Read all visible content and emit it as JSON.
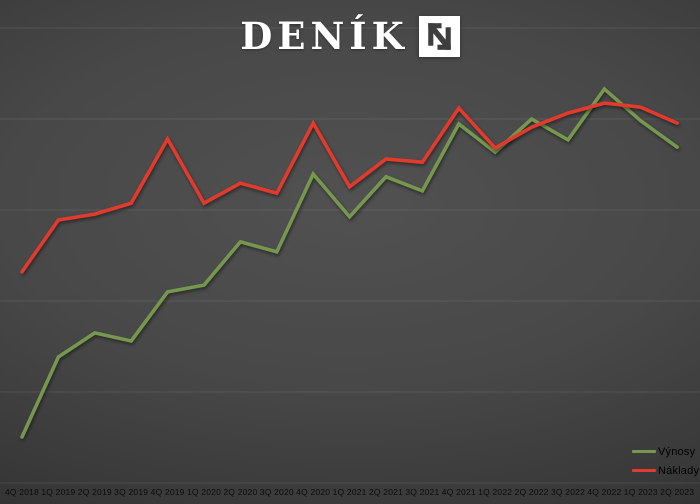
{
  "logo": {
    "wordmark": "DENÍK",
    "mark_letter": "N",
    "box_color": "#ffffff",
    "glyph_color": "#3e3e3e"
  },
  "chart_data": {
    "type": "line",
    "title": "",
    "xlabel": "",
    "ylabel": "",
    "categories": [
      "4Q 2018",
      "1Q 2019",
      "2Q 2019",
      "3Q 2019",
      "4Q 2019",
      "1Q 2020",
      "2Q 2020",
      "3Q 2020",
      "4Q 2020",
      "1Q 2021",
      "2Q 2021",
      "3Q 2021",
      "4Q 2021",
      "1Q 2022",
      "2Q 2022",
      "3Q 2022",
      "4Q 2022",
      "1Q 2023",
      "2Q 2023"
    ],
    "series": [
      {
        "name": "Výnosy",
        "color": "#76974e",
        "values": [
          10.1,
          27.7,
          33.0,
          31.2,
          42.0,
          43.5,
          53.0,
          50.8,
          67.9,
          58.5,
          67.3,
          64.2,
          78.9,
          72.7,
          80.0,
          75.4,
          86.6,
          79.6,
          73.8
        ]
      },
      {
        "name": "Náklady",
        "color": "#e23a2c",
        "values": [
          46.4,
          57.8,
          59.1,
          61.5,
          75.6,
          61.5,
          65.9,
          63.7,
          79.1,
          65.1,
          71.2,
          70.5,
          82.4,
          73.6,
          78.2,
          81.3,
          83.5,
          82.6,
          79.1
        ]
      }
    ],
    "ylim": [
      0,
      100
    ],
    "gridline_interval": 20,
    "grid": "horizontal",
    "y_axis_labels_visible": false,
    "legend_position": "bottom-right"
  },
  "colors": {
    "background_center": "#4f4f4f",
    "background_edge": "#232323",
    "gridline": "rgba(255,255,255,0.09)",
    "axis_text": "#0b0b0b",
    "legend_text": "#000000"
  }
}
